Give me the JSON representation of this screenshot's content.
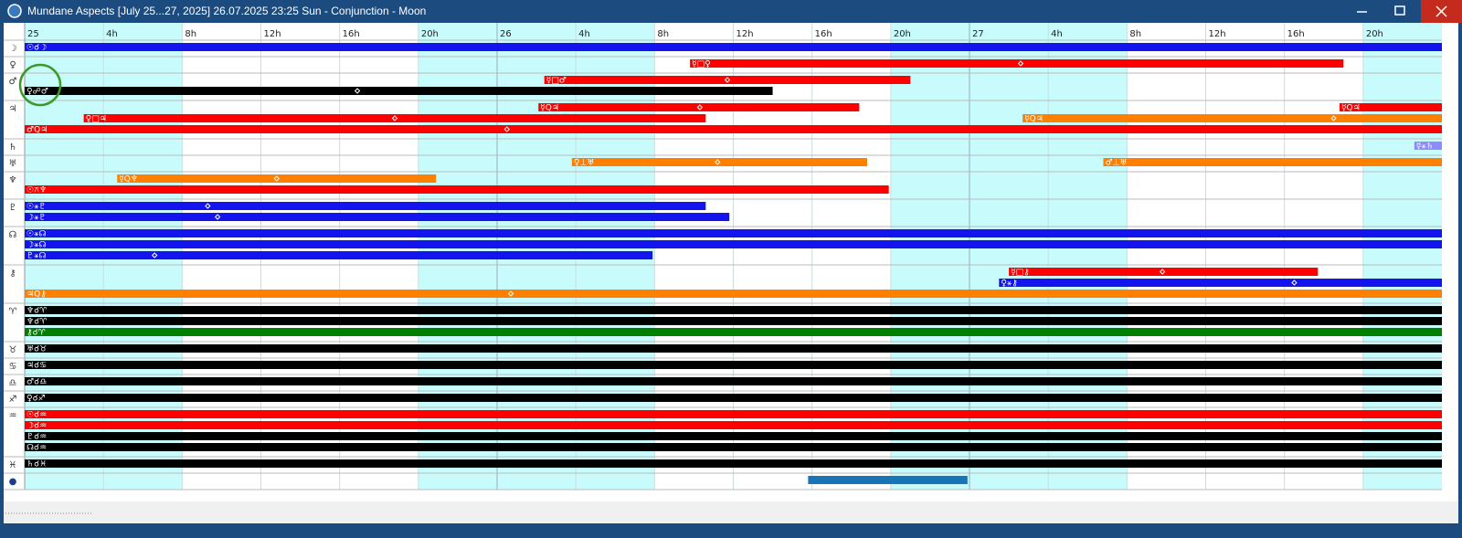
{
  "window": {
    "title": "Mundane Aspects [July 25...27, 2025]  26.07.2025 23:25  Sun - Conjunction - Moon"
  },
  "hour_range": [
    0,
    72
  ],
  "header": [
    {
      "label": "25",
      "hour": 0
    },
    {
      "label": "4h",
      "hour": 4
    },
    {
      "label": "8h",
      "hour": 8
    },
    {
      "label": "12h",
      "hour": 12
    },
    {
      "label": "16h",
      "hour": 16
    },
    {
      "label": "20h",
      "hour": 20
    },
    {
      "label": "26",
      "hour": 24
    },
    {
      "label": "4h",
      "hour": 28
    },
    {
      "label": "8h",
      "hour": 32
    },
    {
      "label": "12h",
      "hour": 36
    },
    {
      "label": "16h",
      "hour": 40
    },
    {
      "label": "20h",
      "hour": 44
    },
    {
      "label": "27",
      "hour": 48
    },
    {
      "label": "4h",
      "hour": 52
    },
    {
      "label": "8h",
      "hour": 56
    },
    {
      "label": "12h",
      "hour": 60
    },
    {
      "label": "16h",
      "hour": 64
    },
    {
      "label": "20h",
      "hour": 68
    }
  ],
  "groups": [
    {
      "glyph": "☽",
      "lanes": [
        [
          {
            "label": "☉☌☽",
            "color": "#1414ef",
            "start": 0,
            "end": 72
          }
        ]
      ]
    },
    {
      "glyph": "♀",
      "lanes": [
        [
          {
            "label": "☿□♀",
            "color": "#ff0000",
            "start": 33.8,
            "end": 67,
            "exact": 50.6
          }
        ]
      ]
    },
    {
      "glyph": "♂",
      "lanes": [
        [
          {
            "label": "☿□♂",
            "color": "#ff0000",
            "start": 26.4,
            "end": 45,
            "exact": 35.7
          }
        ],
        [
          {
            "label": "♀☍♂",
            "color": "#000000",
            "start": 0,
            "end": 38,
            "exact": 16.9
          }
        ]
      ]
    },
    {
      "glyph": "♃",
      "lanes": [
        [
          {
            "label": "☿Q♃",
            "color": "#ff0000",
            "start": 26.1,
            "end": 42.4,
            "exact": 34.3
          },
          {
            "label": "☿Q♃",
            "color": "#ff0000",
            "start": 66.8,
            "end": 72
          }
        ],
        [
          {
            "label": "♀□♃",
            "color": "#ff0000",
            "start": 3,
            "end": 34.6,
            "exact": 18.8
          },
          {
            "label": "☿Q♃",
            "color": "#ff7f00",
            "start": 50.7,
            "end": 72,
            "exact": 66.5
          }
        ],
        [
          {
            "label": "♂Q♃",
            "color": "#ff0000",
            "start": 0,
            "end": 72,
            "exact": 24.5
          }
        ]
      ]
    },
    {
      "glyph": "♄",
      "lanes": [
        [
          {
            "label": "☿⚹♄",
            "color": "#8c8cff",
            "start": 70.6,
            "end": 72
          }
        ]
      ]
    },
    {
      "glyph": "♅",
      "lanes": [
        [
          {
            "label": "♀⊥♅",
            "color": "#ff7f00",
            "start": 27.8,
            "end": 42.8,
            "exact": 35.2
          },
          {
            "label": "♂⊥♅",
            "color": "#ff7f00",
            "start": 54.8,
            "end": 72
          }
        ]
      ]
    },
    {
      "glyph": "♆",
      "lanes": [
        [
          {
            "label": "☿Q♆",
            "color": "#ff7f00",
            "start": 4.7,
            "end": 20.9,
            "exact": 12.8
          }
        ],
        [
          {
            "label": "☉⚻♆",
            "color": "#ff0000",
            "start": 0,
            "end": 43.9
          }
        ]
      ]
    },
    {
      "glyph": "♇",
      "lanes": [
        [
          {
            "label": "☉⚹♇",
            "color": "#1414ef",
            "start": 0,
            "end": 34.6,
            "exact": 9.3
          }
        ],
        [
          {
            "label": "☽⚹♇",
            "color": "#1414ef",
            "start": 0,
            "end": 35.8,
            "exact": 9.8
          }
        ]
      ]
    },
    {
      "glyph": "☊",
      "lanes": [
        [
          {
            "label": "☉⚹☊",
            "color": "#1414ef",
            "start": 0,
            "end": 72
          }
        ],
        [
          {
            "label": "☽⚹☊",
            "color": "#1414ef",
            "start": 0,
            "end": 72
          }
        ],
        [
          {
            "label": "♇⚹☊",
            "color": "#1414ef",
            "start": 0,
            "end": 31.9,
            "exact": 6.6
          }
        ]
      ]
    },
    {
      "glyph": "⚷",
      "lanes": [
        [
          {
            "label": "☿□⚷",
            "color": "#ff0000",
            "start": 50,
            "end": 65.7,
            "exact": 57.8
          }
        ],
        [
          {
            "label": "♀⚹⚷",
            "color": "#1414ef",
            "start": 49.5,
            "end": 72,
            "exact": 64.5
          }
        ],
        [
          {
            "label": "♃Q⚷",
            "color": "#ff7f00",
            "start": 0,
            "end": 72,
            "exact": 24.7
          }
        ]
      ]
    },
    {
      "glyph": "♈",
      "lanes": [
        [
          {
            "label": "♆☌♈",
            "color": "#000000",
            "start": 0,
            "end": 72
          }
        ],
        [
          {
            "label": "♆☌♈",
            "color": "#000000",
            "start": 0,
            "end": 72
          }
        ],
        [
          {
            "label": "⚷☌♈",
            "color": "#007f00",
            "start": 0,
            "end": 72
          }
        ]
      ]
    },
    {
      "glyph": "♉",
      "lanes": [
        [
          {
            "label": "♅☌♉",
            "color": "#000000",
            "start": 0,
            "end": 72
          }
        ]
      ]
    },
    {
      "glyph": "♋",
      "lanes": [
        [
          {
            "label": "♃☌♋",
            "color": "#000000",
            "start": 0,
            "end": 72
          }
        ]
      ]
    },
    {
      "glyph": "♎",
      "lanes": [
        [
          {
            "label": "♂☌♎",
            "color": "#000000",
            "start": 0,
            "end": 72
          }
        ]
      ]
    },
    {
      "glyph": "♐",
      "lanes": [
        [
          {
            "label": "♀☌♐",
            "color": "#000000",
            "start": 0,
            "end": 72
          }
        ]
      ]
    },
    {
      "glyph": "♒",
      "lanes": [
        [
          {
            "label": "☉☌♒",
            "color": "#ff0000",
            "start": 0,
            "end": 72
          }
        ],
        [
          {
            "label": "☽☌♒",
            "color": "#ff0000",
            "start": 0,
            "end": 72
          }
        ],
        [
          {
            "label": "♇☌♒",
            "color": "#000000",
            "start": 0,
            "end": 72
          }
        ],
        [
          {
            "label": "☊☌♒",
            "color": "#000000",
            "start": 0,
            "end": 72
          }
        ]
      ]
    },
    {
      "glyph": "♓",
      "lanes": [
        [
          {
            "label": "♄☌♓",
            "color": "#000000",
            "start": 0,
            "end": 72
          }
        ]
      ]
    },
    {
      "glyph": "●",
      "lanes": [
        [
          {
            "color": "#1a75b5",
            "start": 39.8,
            "end": 47.9
          }
        ]
      ]
    }
  ]
}
